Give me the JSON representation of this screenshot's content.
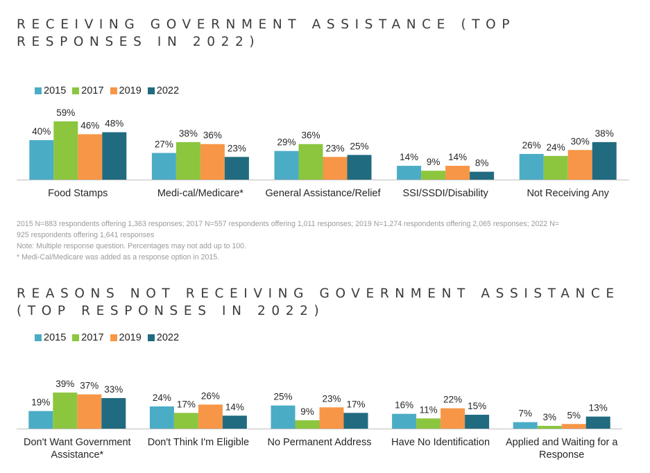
{
  "title1": "RECEIVING GOVERNMENT ASSISTANCE (TOP RESPONSES IN 2022)",
  "title2": "REASONS NOT RECEIVING GOVERNMENT ASSISTANCE (TOP RESPONSES IN 2022)",
  "notes": {
    "line1": "2015 N=883 respondents offering 1,363 responses; 2017 N=557 respondents offering 1,011 responses; 2019 N=1,274 respondents offering 2,065 responses; 2022 N=",
    "line2": "925 respondents offering 1,641   responses",
    "line3": "Note: Multiple response question. Percentages may not add up to 100.",
    "line4": "* Medi-Cal/Medicare was added as a response option in 2015."
  },
  "colors": {
    "2015": "#4bacc6",
    "2017": "#8cc63f",
    "2019": "#f79646",
    "2022": "#216b80"
  },
  "chart_data": [
    {
      "type": "bar",
      "title": "RECEIVING GOVERNMENT ASSISTANCE (TOP RESPONSES IN 2022)",
      "categories": [
        [
          "Food Stamps"
        ],
        [
          "Medi-cal/Medicare*"
        ],
        [
          "General Assistance/Relief"
        ],
        [
          "SSI/SSDI/Disability"
        ],
        [
          "Not Receiving Any"
        ]
      ],
      "series": [
        {
          "name": "2015",
          "values": [
            40,
            27,
            29,
            14,
            26
          ]
        },
        {
          "name": "2017",
          "values": [
            59,
            38,
            36,
            9,
            24
          ]
        },
        {
          "name": "2019",
          "values": [
            46,
            36,
            23,
            14,
            30
          ]
        },
        {
          "name": "2022",
          "values": [
            48,
            23,
            25,
            8,
            38
          ]
        }
      ],
      "value_labels": [
        [
          "40%",
          "27%",
          "29%",
          "14%",
          "26%"
        ],
        [
          "59%",
          "38%",
          "36%",
          "9%",
          "24%"
        ],
        [
          "46%",
          "36%",
          "23%",
          "14%",
          "30%"
        ],
        [
          "48%",
          "23%",
          "25%",
          "8%",
          "38%"
        ]
      ],
      "ylim": [
        0,
        59
      ],
      "legend": "top-left",
      "grid": false
    },
    {
      "type": "bar",
      "title": "REASONS NOT RECEIVING GOVERNMENT ASSISTANCE (TOP RESPONSES IN 2022)",
      "categories": [
        [
          "Don't Want Government",
          "Assistance*"
        ],
        [
          "Don't Think I'm Eligible"
        ],
        [
          "No Permanent Address"
        ],
        [
          "Have No Identification"
        ],
        [
          "Applied and Waiting for a",
          "Response"
        ]
      ],
      "series": [
        {
          "name": "2015",
          "values": [
            19,
            24,
            25,
            16,
            7
          ]
        },
        {
          "name": "2017",
          "values": [
            39,
            17,
            9,
            11,
            3
          ]
        },
        {
          "name": "2019",
          "values": [
            37,
            26,
            23,
            22,
            5
          ]
        },
        {
          "name": "2022",
          "values": [
            33,
            14,
            17,
            15,
            13
          ]
        }
      ],
      "value_labels": [
        [
          "19%",
          "24%",
          "25%",
          "16%",
          "7%"
        ],
        [
          "39%",
          "17%",
          "9%",
          "11%",
          "3%"
        ],
        [
          "37%",
          "26%",
          "23%",
          "22%",
          "5%"
        ],
        [
          "33%",
          "14%",
          "17%",
          "15%",
          "13%"
        ]
      ],
      "ylim": [
        0,
        39
      ],
      "legend": "top-left",
      "grid": false
    }
  ]
}
